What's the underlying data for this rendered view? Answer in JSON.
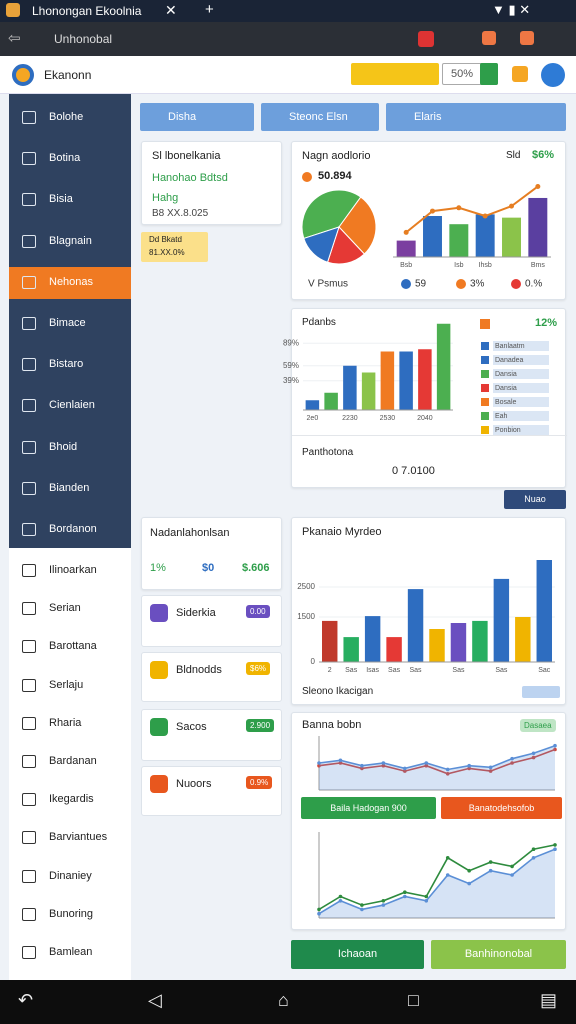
{
  "browser": {
    "tab_title": "Lhonongan Ekoolnia",
    "address": "Unhonobal"
  },
  "header": {
    "brand": "Ekanonn",
    "search_value": "50%"
  },
  "sidebar": {
    "dark_items": [
      "Bolohe",
      "Botina",
      "Bisia",
      "Blagnain",
      "Nehonas",
      "Bimace",
      "Bistaro",
      "Cienlaien",
      "Bhoid",
      "Bianden",
      "Bordanon"
    ],
    "light_items": [
      "Ilinoarkan",
      "Serian",
      "Barottana",
      "Serlaju",
      "Rharia",
      "Bardanan",
      "Ikegardis",
      "Barviantues",
      "Dinaniey",
      "Bunoring",
      "Bamlean"
    ],
    "active_index": 4
  },
  "filters": [
    "Disha",
    "Steonc Elsn",
    "Elaris"
  ],
  "summary_card": {
    "title": "Sl lbonelkania",
    "line1": "Hanohao Bdtsd",
    "line2": "Hahg",
    "line3": "B8 XX.8.025"
  },
  "note": {
    "line1": "Dd Bkatd",
    "line2": "81.XX.0%"
  },
  "overview": {
    "title": "Nagn aodlorio",
    "label": "Sld",
    "value": "$6%",
    "pie_value": "50.894",
    "pie": {
      "type": "pie",
      "values": [
        40,
        28,
        17,
        15
      ],
      "colors": [
        "#4caf50",
        "#f07a22",
        "#e53935",
        "#2e6dc0"
      ]
    },
    "chart": {
      "type": "bar",
      "categories": [
        "Bsb",
        null,
        "Isb",
        "Ihsb",
        null,
        "Bms"
      ],
      "values": [
        20,
        50,
        40,
        52,
        48,
        72
      ],
      "colors": [
        "#7b3fa0",
        "#2e6dc0",
        "#4caf50",
        "#2e6dc0",
        "#8bc34a",
        "#5a3fa0"
      ],
      "ylim": [
        0,
        100
      ],
      "line": {
        "color": "#e67e22",
        "values": [
          30,
          56,
          60,
          50,
          62,
          86
        ]
      }
    },
    "legend": [
      "V Psmus",
      "59",
      "3%",
      "0.%"
    ]
  },
  "performance": {
    "title": "Pdanbs",
    "badge": "12%",
    "chart": {
      "type": "bar",
      "categories": [
        "2e0",
        null,
        "2230",
        null,
        "2530",
        null,
        "2040",
        null
      ],
      "values": [
        13,
        23,
        59,
        50,
        78,
        78,
        81,
        115
      ],
      "colors": [
        "#2e6dc0",
        "#4caf50",
        "#2e6dc0",
        "#8bc34a",
        "#f07a22",
        "#2e6dc0",
        "#e53935",
        "#4caf50"
      ],
      "ylim": [
        0,
        120
      ],
      "yticks": [
        {
          "value": 39,
          "label": "39%"
        },
        {
          "value": 59,
          "label": "59%"
        },
        {
          "value": 89,
          "label": "89%"
        }
      ]
    },
    "legend": [
      {
        "label": "Banlaatm",
        "color": "#2e6dc0"
      },
      {
        "label": "Danadea",
        "color": "#2e6dc0"
      },
      {
        "label": "Dansia",
        "color": "#4caf50"
      },
      {
        "label": "Dansia",
        "color": "#e53935"
      },
      {
        "label": "Bosale",
        "color": "#f07a22"
      },
      {
        "label": "Eah",
        "color": "#4caf50"
      },
      {
        "label": "Ponbion",
        "color": "#f0b400"
      }
    ],
    "footer_title": "Panthotona",
    "footer_value": "0 7.0100"
  },
  "more_button": "Nuao",
  "stats_card": {
    "title": "Nadanlahonlsan",
    "stats": [
      "1%",
      "$0",
      "$.606"
    ]
  },
  "list_items": [
    {
      "label": "Siderkia",
      "badge": "0.00"
    },
    {
      "label": "Bldnodds",
      "badge": "$6%"
    },
    {
      "label": "Sacos",
      "badge": "2.900"
    },
    {
      "label": "Nuoors",
      "badge": "0.9%"
    }
  ],
  "monthly": {
    "title": "Pkanaio Myrdeo",
    "footer": "Sleono Ikacigan",
    "chart": {
      "type": "bar",
      "categories": [
        "2",
        "Sas",
        "Isas",
        "Sas",
        "Sas",
        null,
        "Sas",
        null,
        "Sas",
        null,
        "Sac"
      ],
      "values": [
        1370,
        830,
        1530,
        830,
        2430,
        1100,
        1300,
        1370,
        2770,
        1500,
        3400
      ],
      "colors": [
        "#c0392b",
        "#27ae60",
        "#2e6dc0",
        "#e53935",
        "#2e6dc0",
        "#f0b400",
        "#6a4fc0",
        "#27ae60",
        "#2e6dc0",
        "#f0b400",
        "#2e6dc0"
      ],
      "ylim": [
        0,
        3500
      ],
      "yticks": [
        0,
        1500,
        2500
      ]
    }
  },
  "trend": {
    "title": "Banna bobn",
    "tag": "Dasaea",
    "buttons": [
      "Baila Hadogan 900",
      "Banatodehsofob"
    ],
    "chart1": {
      "type": "line",
      "ylim": [
        0,
        100
      ],
      "area": true,
      "series": [
        {
          "color": "#d0463a",
          "values": [
            45,
            50,
            40,
            45,
            35,
            45,
            30,
            40,
            35,
            50,
            60,
            75
          ]
        },
        {
          "color": "#5b8fd6",
          "values": [
            50,
            55,
            45,
            50,
            40,
            50,
            38,
            45,
            42,
            58,
            68,
            82
          ]
        }
      ]
    },
    "chart2": {
      "type": "line",
      "ylim": [
        0,
        100
      ],
      "area": true,
      "series": [
        {
          "color": "#2e8b3e",
          "values": [
            10,
            25,
            15,
            20,
            30,
            25,
            70,
            55,
            65,
            60,
            80,
            85
          ]
        },
        {
          "color": "#5b8fd6",
          "values": [
            5,
            20,
            10,
            15,
            25,
            20,
            50,
            40,
            55,
            50,
            70,
            80
          ]
        }
      ]
    }
  },
  "bottom_buttons": [
    "Ichaoan",
    "Banhinonobal"
  ]
}
